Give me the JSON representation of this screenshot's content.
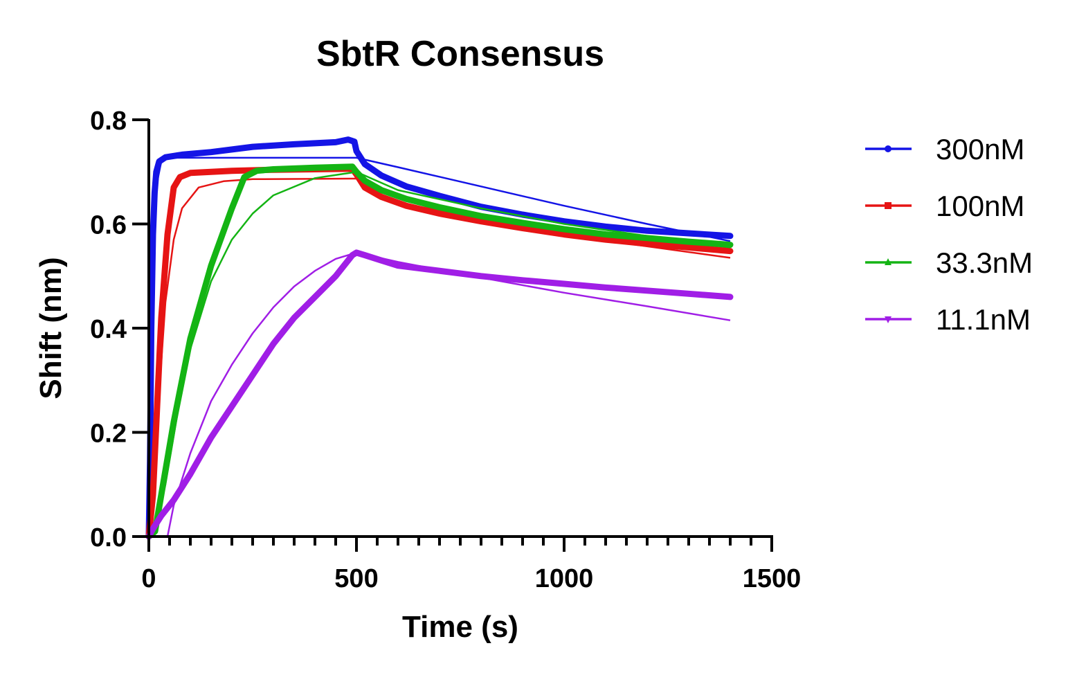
{
  "chart_data": {
    "type": "line",
    "title": "SbtR Consensus",
    "xlabel": "Time (s)",
    "ylabel": "Shift (nm)",
    "xlim": [
      0,
      1500
    ],
    "ylim": [
      0,
      0.8
    ],
    "x_ticks": [
      0,
      500,
      1000,
      1500
    ],
    "x_tick_labels": [
      "0",
      "500",
      "1000",
      "1500"
    ],
    "x_minor_step": 50,
    "y_ticks": [
      0.0,
      0.2,
      0.4,
      0.6,
      0.8
    ],
    "y_tick_labels": [
      "0.0",
      "0.2",
      "0.4",
      "0.6",
      "0.8"
    ],
    "legend_position": "right",
    "series": [
      {
        "name": "300nM",
        "color": "#1414e6",
        "marker": "circle",
        "data": [
          [
            0,
            0
          ],
          [
            3,
            0.15
          ],
          [
            6,
            0.4
          ],
          [
            10,
            0.58
          ],
          [
            14,
            0.66
          ],
          [
            18,
            0.7
          ],
          [
            25,
            0.72
          ],
          [
            40,
            0.728
          ],
          [
            80,
            0.733
          ],
          [
            150,
            0.738
          ],
          [
            250,
            0.748
          ],
          [
            350,
            0.753
          ],
          [
            450,
            0.757
          ],
          [
            480,
            0.762
          ],
          [
            495,
            0.758
          ],
          [
            500,
            0.74
          ],
          [
            520,
            0.715
          ],
          [
            560,
            0.693
          ],
          [
            620,
            0.672
          ],
          [
            700,
            0.654
          ],
          [
            800,
            0.633
          ],
          [
            900,
            0.618
          ],
          [
            1000,
            0.605
          ],
          [
            1100,
            0.595
          ],
          [
            1200,
            0.587
          ],
          [
            1300,
            0.582
          ],
          [
            1400,
            0.577
          ]
        ],
        "fit": [
          [
            0,
            0
          ],
          [
            10,
            0.5
          ],
          [
            20,
            0.68
          ],
          [
            30,
            0.72
          ],
          [
            50,
            0.727
          ],
          [
            500,
            0.727
          ],
          [
            600,
            0.709
          ],
          [
            800,
            0.672
          ],
          [
            1000,
            0.635
          ],
          [
            1200,
            0.6
          ],
          [
            1400,
            0.567
          ]
        ]
      },
      {
        "name": "100nM",
        "color": "#e61414",
        "marker": "square",
        "data": [
          [
            0,
            0
          ],
          [
            10,
            0.08
          ],
          [
            20,
            0.25
          ],
          [
            30,
            0.42
          ],
          [
            45,
            0.58
          ],
          [
            60,
            0.67
          ],
          [
            75,
            0.69
          ],
          [
            100,
            0.698
          ],
          [
            200,
            0.702
          ],
          [
            300,
            0.704
          ],
          [
            400,
            0.705
          ],
          [
            490,
            0.706
          ],
          [
            500,
            0.695
          ],
          [
            520,
            0.67
          ],
          [
            560,
            0.652
          ],
          [
            620,
            0.635
          ],
          [
            700,
            0.62
          ],
          [
            800,
            0.605
          ],
          [
            900,
            0.592
          ],
          [
            1000,
            0.58
          ],
          [
            1100,
            0.57
          ],
          [
            1200,
            0.562
          ],
          [
            1300,
            0.555
          ],
          [
            1400,
            0.548
          ]
        ],
        "fit": [
          [
            0,
            0
          ],
          [
            20,
            0.22
          ],
          [
            40,
            0.45
          ],
          [
            60,
            0.57
          ],
          [
            80,
            0.63
          ],
          [
            120,
            0.67
          ],
          [
            180,
            0.682
          ],
          [
            250,
            0.686
          ],
          [
            500,
            0.687
          ],
          [
            550,
            0.665
          ],
          [
            700,
            0.625
          ],
          [
            900,
            0.592
          ],
          [
            1100,
            0.568
          ],
          [
            1400,
            0.535
          ]
        ]
      },
      {
        "name": "33.3nM",
        "color": "#14b414",
        "marker": "triangle",
        "data": [
          [
            0,
            0
          ],
          [
            15,
            0.01
          ],
          [
            30,
            0.08
          ],
          [
            60,
            0.22
          ],
          [
            100,
            0.38
          ],
          [
            150,
            0.52
          ],
          [
            200,
            0.63
          ],
          [
            230,
            0.69
          ],
          [
            260,
            0.702
          ],
          [
            300,
            0.705
          ],
          [
            400,
            0.708
          ],
          [
            490,
            0.71
          ],
          [
            500,
            0.7
          ],
          [
            520,
            0.683
          ],
          [
            560,
            0.665
          ],
          [
            620,
            0.648
          ],
          [
            700,
            0.632
          ],
          [
            800,
            0.615
          ],
          [
            900,
            0.602
          ],
          [
            1000,
            0.59
          ],
          [
            1100,
            0.58
          ],
          [
            1200,
            0.573
          ],
          [
            1300,
            0.566
          ],
          [
            1400,
            0.56
          ]
        ],
        "fit": [
          [
            0,
            0
          ],
          [
            15,
            0.01
          ],
          [
            40,
            0.1
          ],
          [
            70,
            0.24
          ],
          [
            100,
            0.36
          ],
          [
            150,
            0.49
          ],
          [
            200,
            0.57
          ],
          [
            250,
            0.62
          ],
          [
            300,
            0.655
          ],
          [
            400,
            0.688
          ],
          [
            500,
            0.7
          ],
          [
            600,
            0.665
          ],
          [
            800,
            0.63
          ],
          [
            1000,
            0.6
          ],
          [
            1200,
            0.577
          ],
          [
            1400,
            0.555
          ]
        ]
      },
      {
        "name": "11.1nM",
        "color": "#a01ee6",
        "marker": "down-triangle",
        "data": [
          [
            0,
            0
          ],
          [
            10,
            0.015
          ],
          [
            30,
            0.04
          ],
          [
            60,
            0.07
          ],
          [
            100,
            0.12
          ],
          [
            150,
            0.19
          ],
          [
            200,
            0.25
          ],
          [
            250,
            0.31
          ],
          [
            300,
            0.37
          ],
          [
            350,
            0.42
          ],
          [
            400,
            0.46
          ],
          [
            450,
            0.5
          ],
          [
            490,
            0.54
          ],
          [
            500,
            0.545
          ],
          [
            520,
            0.54
          ],
          [
            560,
            0.53
          ],
          [
            600,
            0.52
          ],
          [
            700,
            0.51
          ],
          [
            800,
            0.5
          ],
          [
            900,
            0.492
          ],
          [
            1000,
            0.485
          ],
          [
            1100,
            0.478
          ],
          [
            1200,
            0.472
          ],
          [
            1300,
            0.466
          ],
          [
            1400,
            0.46
          ]
        ],
        "fit": [
          [
            45,
            0
          ],
          [
            60,
            0.06
          ],
          [
            100,
            0.16
          ],
          [
            150,
            0.26
          ],
          [
            200,
            0.33
          ],
          [
            250,
            0.39
          ],
          [
            300,
            0.44
          ],
          [
            350,
            0.48
          ],
          [
            400,
            0.51
          ],
          [
            450,
            0.533
          ],
          [
            500,
            0.545
          ],
          [
            600,
            0.527
          ],
          [
            800,
            0.497
          ],
          [
            1000,
            0.468
          ],
          [
            1200,
            0.442
          ],
          [
            1400,
            0.415
          ]
        ]
      }
    ]
  }
}
